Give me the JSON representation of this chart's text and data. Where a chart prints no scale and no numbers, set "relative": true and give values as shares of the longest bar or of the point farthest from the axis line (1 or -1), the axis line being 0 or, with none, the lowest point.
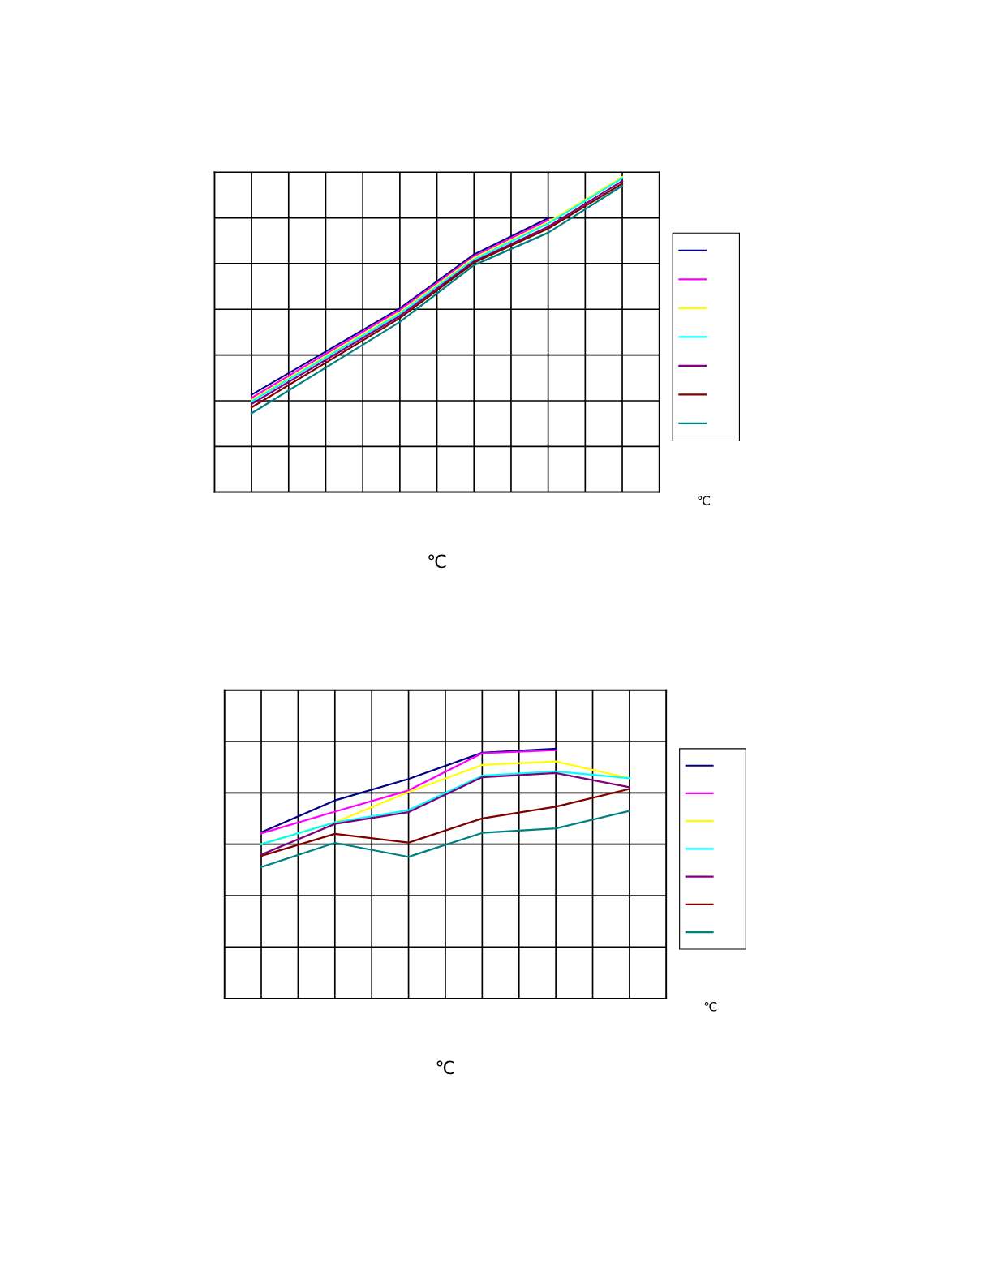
{
  "chart_data": [
    {
      "type": "line",
      "relative": true,
      "xlabel": "℃",
      "annotations": [
        "℃"
      ],
      "grid": true,
      "tick_labels": false,
      "marker": "none",
      "line_style": "solid",
      "categories": [
        null,
        null,
        null,
        null,
        null,
        null,
        null,
        null,
        null,
        null,
        null,
        null,
        null
      ],
      "series": [
        {
          "color": "#000080",
          "values": [
            null,
            0.309,
            null,
            null,
            null,
            0.583,
            null,
            0.754,
            null,
            0.869,
            null,
            null,
            null
          ]
        },
        {
          "color": "#ff00ff",
          "values": [
            null,
            0.299,
            null,
            null,
            null,
            0.578,
            null,
            0.748,
            null,
            0.863,
            null,
            null,
            null
          ]
        },
        {
          "color": "#ffff00",
          "values": [
            null,
            0.292,
            null,
            null,
            null,
            0.571,
            null,
            0.743,
            null,
            0.856,
            null,
            1.0,
            null
          ]
        },
        {
          "color": "#00ffff",
          "values": [
            null,
            0.288,
            null,
            null,
            null,
            0.566,
            null,
            0.738,
            null,
            0.852,
            null,
            0.996,
            null
          ]
        },
        {
          "color": "#800080",
          "values": [
            null,
            0.28,
            null,
            null,
            null,
            0.559,
            null,
            0.732,
            null,
            0.842,
            null,
            0.987,
            null
          ]
        },
        {
          "color": "#800000",
          "values": [
            null,
            0.269,
            null,
            null,
            null,
            0.552,
            null,
            0.728,
            null,
            0.836,
            null,
            0.979,
            null
          ]
        },
        {
          "color": "#008080",
          "values": [
            null,
            0.25,
            null,
            null,
            null,
            0.54,
            null,
            0.72,
            null,
            0.823,
            null,
            0.972,
            null
          ]
        }
      ]
    },
    {
      "type": "line",
      "relative": true,
      "xlabel": "℃",
      "annotations": [
        "℃"
      ],
      "grid": true,
      "tick_labels": false,
      "marker": "none",
      "line_style": "solid",
      "categories": [
        null,
        null,
        null,
        null,
        null,
        null,
        null,
        null,
        null,
        null,
        null,
        null,
        null
      ],
      "series": [
        {
          "color": "#000080",
          "values": [
            null,
            0.665,
            null,
            0.793,
            null,
            0.879,
            null,
            0.984,
            null,
            1.0,
            null,
            null,
            null
          ]
        },
        {
          "color": "#ff00ff",
          "values": [
            null,
            0.661,
            null,
            0.748,
            null,
            0.833,
            null,
            0.982,
            null,
            0.994,
            null,
            null,
            null
          ]
        },
        {
          "color": "#ffff00",
          "values": [
            null,
            0.618,
            null,
            0.705,
            null,
            0.827,
            null,
            0.935,
            null,
            0.949,
            null,
            0.882,
            null
          ]
        },
        {
          "color": "#00ffff",
          "values": [
            null,
            0.618,
            null,
            0.705,
            null,
            0.754,
            null,
            0.892,
            null,
            0.909,
            null,
            0.882,
            null
          ]
        },
        {
          "color": "#800080",
          "values": [
            null,
            0.576,
            null,
            0.699,
            null,
            0.746,
            null,
            0.886,
            null,
            0.903,
            null,
            0.846,
            null
          ]
        },
        {
          "color": "#800000",
          "values": [
            null,
            0.571,
            null,
            0.659,
            null,
            0.624,
            null,
            0.721,
            null,
            0.768,
            null,
            0.839,
            null
          ]
        },
        {
          "color": "#008080",
          "values": [
            null,
            0.526,
            null,
            0.623,
            null,
            0.567,
            null,
            0.663,
            null,
            0.681,
            null,
            0.751,
            null
          ]
        }
      ]
    }
  ]
}
